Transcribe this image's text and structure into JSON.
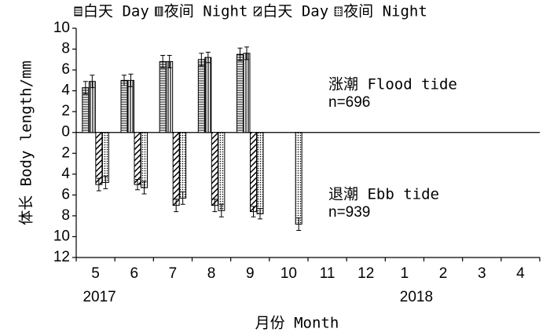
{
  "chart_data": {
    "type": "bar",
    "y_label": "体长 Body length/mm",
    "x_label": "月份 Month",
    "categories": [
      "5",
      "6",
      "7",
      "8",
      "9",
      "10",
      "11",
      "12",
      "1",
      "2",
      "3",
      "4"
    ],
    "year_labels": [
      {
        "label": "2017",
        "category": "5"
      },
      {
        "label": "2018",
        "category": "1"
      }
    ],
    "series": [
      {
        "name": "白天 Day",
        "color": "#000000",
        "pattern": "horizontal",
        "values": [
          4.3,
          5.0,
          6.8,
          7.0,
          7.5,
          null,
          null,
          null,
          null,
          null,
          null,
          null
        ],
        "errors": [
          0.6,
          0.5,
          0.6,
          0.6,
          0.6,
          null,
          null,
          null,
          null,
          null,
          null,
          null
        ]
      },
      {
        "name": "夜间 Night",
        "color": "#000000",
        "pattern": "vertical",
        "values": [
          4.9,
          5.0,
          6.8,
          7.2,
          7.6,
          null,
          null,
          null,
          null,
          null,
          null,
          null
        ],
        "errors": [
          0.6,
          0.6,
          0.6,
          0.5,
          0.6,
          null,
          null,
          null,
          null,
          null,
          null,
          null
        ]
      },
      {
        "name": "白天 Day",
        "color": "#000000",
        "pattern": "diagonal",
        "values": [
          -5.0,
          -5.0,
          -7.0,
          -7.0,
          -7.6,
          null,
          null,
          null,
          null,
          null,
          null,
          null
        ],
        "errors": [
          0.6,
          0.5,
          0.6,
          0.6,
          0.5,
          null,
          null,
          null,
          null,
          null,
          null,
          null
        ]
      },
      {
        "name": "夜间 Night",
        "color": "#000000",
        "pattern": "dots",
        "values": [
          -4.8,
          -5.3,
          -6.3,
          -7.5,
          -7.8,
          -8.8,
          null,
          null,
          null,
          null,
          null,
          null
        ],
        "errors": [
          0.6,
          0.6,
          0.6,
          0.6,
          0.5,
          0.6,
          null,
          null,
          null,
          null,
          null,
          null
        ]
      }
    ],
    "annotations": [
      {
        "text": "涨潮 Flood tide"
      },
      {
        "text": "n=696"
      },
      {
        "text": "退潮 Ebb tide"
      },
      {
        "text": "n=939"
      }
    ],
    "ylim": [
      -12,
      10
    ],
    "yticks": [
      10,
      8,
      6,
      4,
      2,
      0,
      {
        "value": -2,
        "label": "2"
      },
      {
        "value": -4,
        "label": "4"
      },
      {
        "value": -6,
        "label": "6"
      },
      {
        "value": -8,
        "label": "8"
      },
      {
        "value": -10,
        "label": "10"
      },
      {
        "value": -12,
        "label": "12"
      }
    ]
  }
}
